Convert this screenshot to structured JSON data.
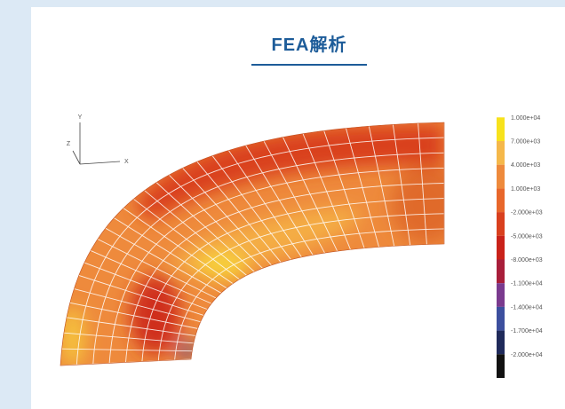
{
  "header": {
    "title": "FEA解析"
  },
  "figure": {
    "axes": {
      "y": "Y",
      "z": "Z",
      "x": "X"
    },
    "legend": [
      "1.000e+04",
      "7.000e+03",
      "4.000e+03",
      "1.000e+03",
      "-2.000e+03",
      "-5.000e+03",
      "-8.000e+03",
      "-1.100e+04",
      "-1.400e+04",
      "-1.700e+04",
      "-2.000e+04"
    ]
  }
}
